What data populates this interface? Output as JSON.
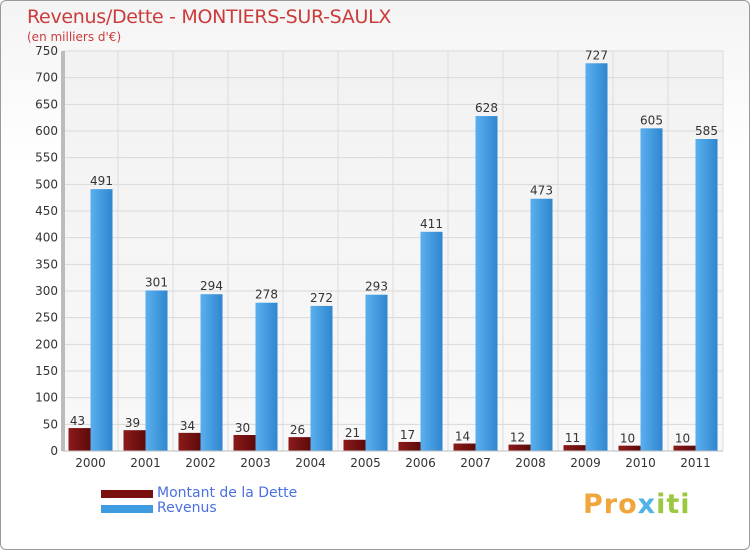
{
  "colors": {
    "debt": "#7a1010",
    "revenue": "#3f9ce0",
    "title": "#cc3b3b",
    "legend_text": "#4a6fe0"
  },
  "logo": {
    "part1": "Pro",
    "part2": "x",
    "part3": "iti"
  },
  "chart_data": {
    "type": "bar",
    "title": "Revenus/Dette - MONTIERS-SUR-SAULX",
    "subtitle": "(en milliers d'€)",
    "xlabel": "",
    "ylabel": "",
    "ylim": [
      0,
      750
    ],
    "yticks": [
      0,
      50,
      100,
      150,
      200,
      250,
      300,
      350,
      400,
      450,
      500,
      550,
      600,
      650,
      700,
      750
    ],
    "categories": [
      "2000",
      "2001",
      "2002",
      "2003",
      "2004",
      "2005",
      "2006",
      "2007",
      "2008",
      "2009",
      "2010",
      "2011"
    ],
    "series": [
      {
        "name": "Montant de la Dette",
        "values": [
          43,
          39,
          34,
          30,
          26,
          21,
          17,
          14,
          12,
          11,
          10,
          10
        ]
      },
      {
        "name": "Revenus",
        "values": [
          491,
          301,
          294,
          278,
          272,
          293,
          411,
          628,
          473,
          727,
          605,
          585
        ]
      }
    ],
    "legend_position": "bottom-left"
  }
}
